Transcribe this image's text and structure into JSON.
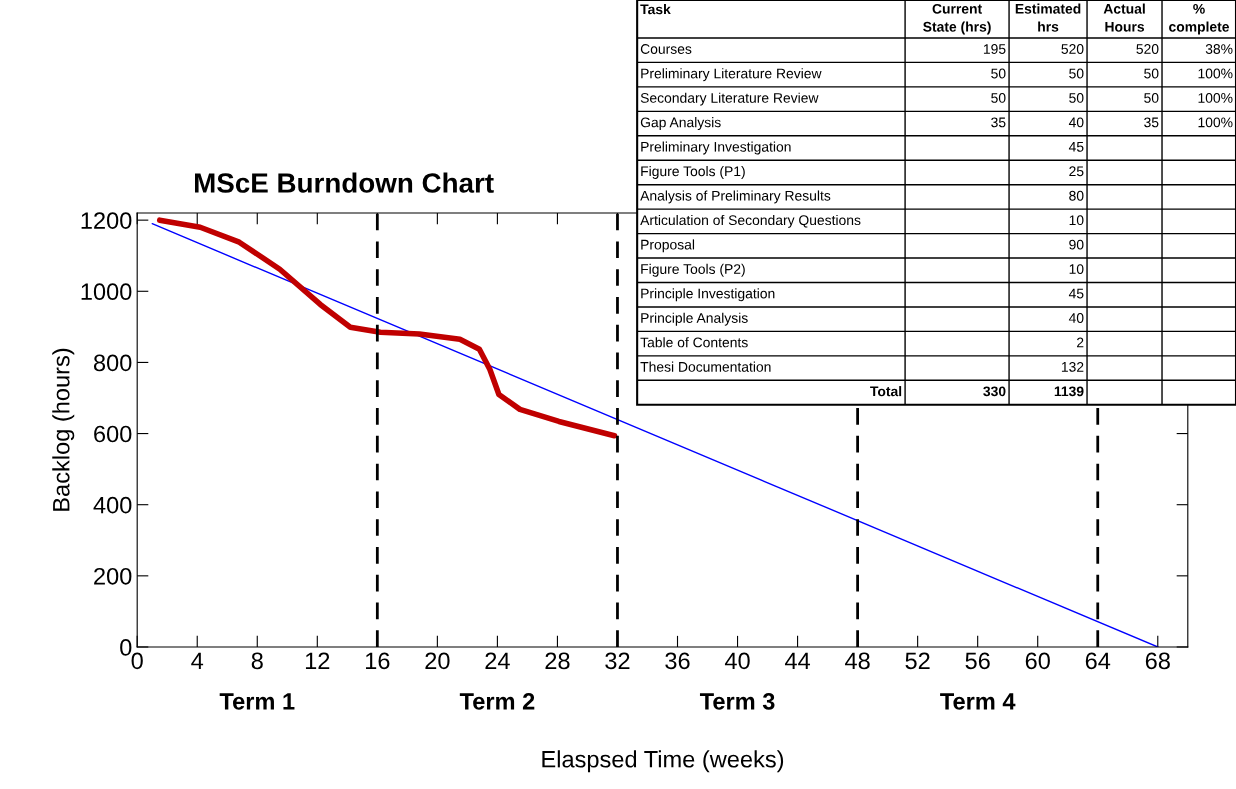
{
  "chart_data": [
    {
      "type": "line",
      "title": "MScE Burndown Chart",
      "xlabel": "Elaspsed Time (weeks)",
      "ylabel": "Backlog (hours)",
      "xlim": [
        0,
        70
      ],
      "xticks": [
        0,
        4,
        8,
        12,
        16,
        20,
        24,
        28,
        32,
        36,
        40,
        44,
        48,
        52,
        56,
        60,
        64,
        68
      ],
      "ylim": [
        0,
        1220
      ],
      "yticks": [
        0,
        200,
        400,
        600,
        800,
        1000,
        1200
      ],
      "grid": false,
      "legend": false,
      "marker": "none",
      "series": [
        {
          "color": "#0000ff",
          "x": [
            1,
            68
          ],
          "values": [
            1190,
            0
          ]
        },
        {
          "color": "#c00000",
          "x": [
            1.5,
            4.2,
            6.8,
            9.5,
            12.2,
            14.2,
            16.2,
            18.8,
            21.5,
            22.8,
            23.5,
            24.1,
            25.5,
            28.1,
            31.8
          ],
          "values": [
            1200,
            1180,
            1138,
            1062,
            963,
            899,
            885,
            880,
            865,
            837,
            780,
            710,
            668,
            634,
            594
          ]
        }
      ],
      "ref_lines": [
        {
          "axis": "x",
          "value": 16,
          "color": "#000000",
          "line_style": "dashed"
        },
        {
          "axis": "x",
          "value": 32,
          "color": "#000000",
          "line_style": "dashed"
        },
        {
          "axis": "x",
          "value": 48,
          "color": "#000000",
          "line_style": "dashed"
        },
        {
          "axis": "x",
          "value": 64,
          "color": "#000000",
          "line_style": "dashed"
        }
      ],
      "annotations": [
        "Term 1",
        "Term 2",
        "Term 3",
        "Term 4"
      ]
    },
    {
      "type": "other",
      "ylabel": "Task",
      "categories": [
        "Current\nState (hrs)",
        "Estimated\nhrs",
        "Actual\nHours",
        "%\ncomplete"
      ],
      "y_categories": [
        "Courses",
        "Preliminary Literature Review",
        "Secondary Literature Review",
        "Gap Analysis",
        "Preliminary Investigation",
        "Figure Tools (P1)",
        "Analysis of Preliminary Results",
        "Articulation of Secondary Questions",
        "Proposal",
        "Figure Tools (P2)",
        "Principle Investigation",
        "Principle Analysis",
        "Table of Contents",
        "Thesi Documentation",
        "Total"
      ],
      "cell_labels": [
        [
          "195",
          "520",
          "520",
          "38%"
        ],
        [
          "50",
          "50",
          "50",
          "100%"
        ],
        [
          "50",
          "50",
          "50",
          "100%"
        ],
        [
          "35",
          "40",
          "35",
          "100%"
        ],
        [
          null,
          "45",
          null,
          null
        ],
        [
          null,
          "25",
          null,
          null
        ],
        [
          null,
          "80",
          null,
          null
        ],
        [
          null,
          "10",
          null,
          null
        ],
        [
          null,
          "90",
          null,
          null
        ],
        [
          null,
          "10",
          null,
          null
        ],
        [
          null,
          "45",
          null,
          null
        ],
        [
          null,
          "40",
          null,
          null
        ],
        [
          null,
          "2",
          null,
          null
        ],
        [
          null,
          "132",
          null,
          null
        ],
        [
          "330",
          "1139",
          null,
          null
        ]
      ]
    }
  ]
}
